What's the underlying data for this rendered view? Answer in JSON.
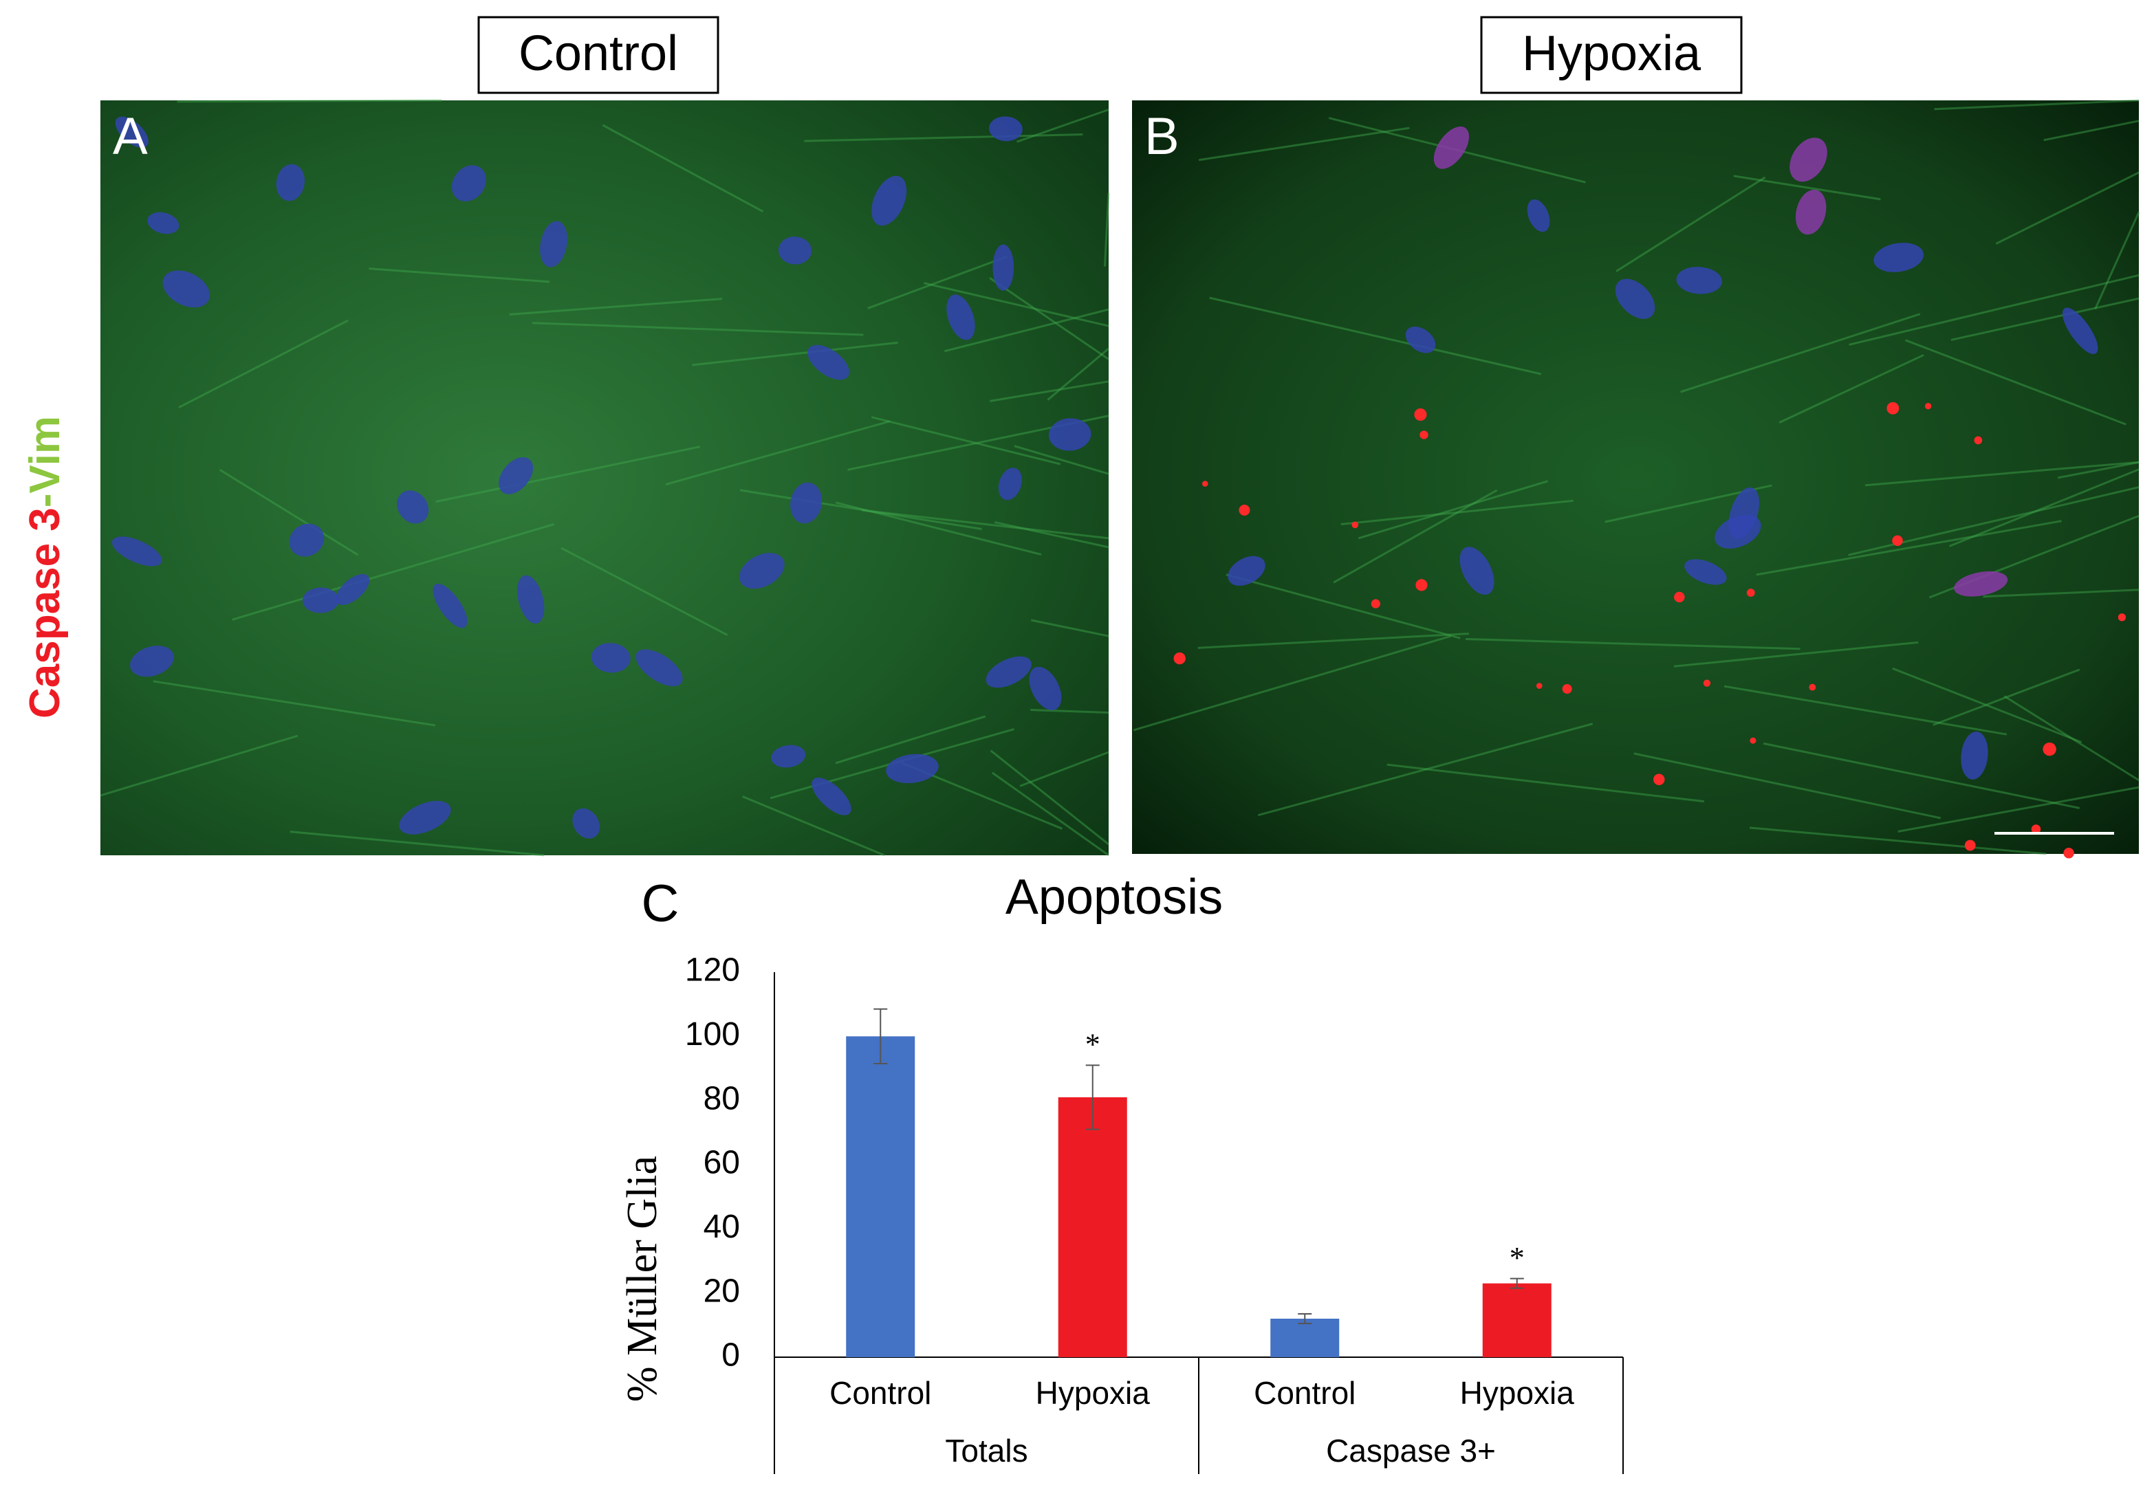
{
  "panels": {
    "stain_label": {
      "marker": "Caspase 3",
      "counter": "-Vim"
    },
    "images": [
      {
        "letter": "A",
        "condition": "Control"
      },
      {
        "letter": "B",
        "condition": "Hypoxia"
      }
    ]
  },
  "chart_data": {
    "type": "bar",
    "panel_letter": "C",
    "title": "Apoptosis",
    "y_label": "% Müller Glia",
    "groups": [
      {
        "name": "Totals",
        "categories": [
          "Control",
          "Hypoxia"
        ],
        "values": [
          100,
          81
        ],
        "errors": [
          8.5,
          10
        ],
        "colors": [
          "#4472c4",
          "#ed1c24"
        ],
        "markers": [
          null,
          "*"
        ]
      },
      {
        "name": "Caspase 3+",
        "categories": [
          "Control",
          "Hypoxia"
        ],
        "values": [
          12,
          23
        ],
        "errors": [
          1.5,
          1.5
        ],
        "colors": [
          "#4472c4",
          "#ed1c24"
        ],
        "markers": [
          null,
          "*"
        ]
      }
    ],
    "ylim": [
      0,
      120
    ],
    "yticks": [
      0,
      20,
      40,
      60,
      80,
      100,
      120
    ],
    "grid": false
  }
}
